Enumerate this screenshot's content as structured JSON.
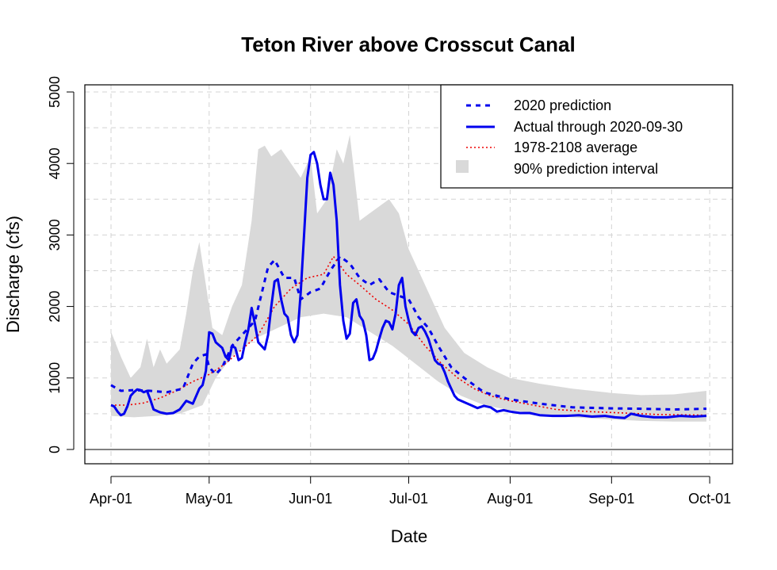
{
  "chart_data": {
    "type": "line",
    "title": "Teton River above Crosscut Canal",
    "xlabel": "Date",
    "ylabel": "Discharge (cfs)",
    "x_ticks": [
      "Apr-01",
      "May-01",
      "Jun-01",
      "Jul-01",
      "Aug-01",
      "Sep-01",
      "Oct-01"
    ],
    "y_ticks": [
      "0",
      "1000",
      "2000",
      "3000",
      "4000",
      "5000"
    ],
    "xlim": [
      "2020-03-24",
      "2020-10-08"
    ],
    "ylim": [
      -200,
      5100
    ],
    "grid": true,
    "legend_position": "top-right",
    "colors": {
      "prediction": "#0000ee",
      "actual": "#0000ee",
      "average": "#ee0000",
      "interval": "#d9d9d9"
    },
    "series": [
      {
        "name": "2020 prediction",
        "style": "dashed",
        "points": [
          [
            "2020-04-01",
            900
          ],
          [
            "2020-04-04",
            820
          ],
          [
            "2020-04-08",
            830
          ],
          [
            "2020-04-13",
            820
          ],
          [
            "2020-04-18",
            800
          ],
          [
            "2020-04-23",
            850
          ],
          [
            "2020-04-26",
            1200
          ],
          [
            "2020-04-28",
            1300
          ],
          [
            "2020-04-30",
            1330
          ],
          [
            "2020-05-01",
            1150
          ],
          [
            "2020-05-03",
            1050
          ],
          [
            "2020-05-05",
            1150
          ],
          [
            "2020-05-08",
            1450
          ],
          [
            "2020-05-12",
            1650
          ],
          [
            "2020-05-15",
            1800
          ],
          [
            "2020-05-19",
            2550
          ],
          [
            "2020-05-21",
            2650
          ],
          [
            "2020-05-24",
            2400
          ],
          [
            "2020-05-27",
            2400
          ],
          [
            "2020-05-29",
            2100
          ],
          [
            "2020-06-01",
            2200
          ],
          [
            "2020-06-04",
            2250
          ],
          [
            "2020-06-07",
            2500
          ],
          [
            "2020-06-10",
            2700
          ],
          [
            "2020-06-13",
            2600
          ],
          [
            "2020-06-16",
            2400
          ],
          [
            "2020-06-19",
            2300
          ],
          [
            "2020-06-22",
            2380
          ],
          [
            "2020-06-25",
            2200
          ],
          [
            "2020-06-28",
            2150
          ],
          [
            "2020-07-01",
            2100
          ],
          [
            "2020-07-04",
            1850
          ],
          [
            "2020-07-07",
            1700
          ],
          [
            "2020-07-10",
            1450
          ],
          [
            "2020-07-14",
            1150
          ],
          [
            "2020-07-18",
            1000
          ],
          [
            "2020-07-24",
            800
          ],
          [
            "2020-08-01",
            700
          ],
          [
            "2020-08-10",
            640
          ],
          [
            "2020-08-20",
            590
          ],
          [
            "2020-09-01",
            575
          ],
          [
            "2020-09-10",
            570
          ],
          [
            "2020-09-20",
            560
          ],
          [
            "2020-09-30",
            570
          ]
        ]
      },
      {
        "name": "Actual through 2020-09-30",
        "style": "solid",
        "points": [
          [
            "2020-04-01",
            620
          ],
          [
            "2020-04-02",
            600
          ],
          [
            "2020-04-03",
            530
          ],
          [
            "2020-04-04",
            480
          ],
          [
            "2020-04-05",
            500
          ],
          [
            "2020-04-06",
            600
          ],
          [
            "2020-04-07",
            750
          ],
          [
            "2020-04-08",
            800
          ],
          [
            "2020-04-09",
            840
          ],
          [
            "2020-04-10",
            830
          ],
          [
            "2020-04-11",
            800
          ],
          [
            "2020-04-12",
            820
          ],
          [
            "2020-04-13",
            700
          ],
          [
            "2020-04-14",
            560
          ],
          [
            "2020-04-16",
            520
          ],
          [
            "2020-04-18",
            500
          ],
          [
            "2020-04-20",
            510
          ],
          [
            "2020-04-22",
            560
          ],
          [
            "2020-04-24",
            680
          ],
          [
            "2020-04-26",
            640
          ],
          [
            "2020-04-28",
            850
          ],
          [
            "2020-04-29",
            900
          ],
          [
            "2020-04-30",
            1100
          ],
          [
            "2020-05-01",
            1640
          ],
          [
            "2020-05-02",
            1620
          ],
          [
            "2020-05-03",
            1500
          ],
          [
            "2020-05-05",
            1420
          ],
          [
            "2020-05-06",
            1300
          ],
          [
            "2020-05-07",
            1250
          ],
          [
            "2020-05-08",
            1450
          ],
          [
            "2020-05-09",
            1420
          ],
          [
            "2020-05-10",
            1250
          ],
          [
            "2020-05-11",
            1280
          ],
          [
            "2020-05-12",
            1500
          ],
          [
            "2020-05-13",
            1680
          ],
          [
            "2020-05-14",
            1980
          ],
          [
            "2020-05-15",
            1750
          ],
          [
            "2020-05-16",
            1500
          ],
          [
            "2020-05-18",
            1400
          ],
          [
            "2020-05-19",
            1600
          ],
          [
            "2020-05-20",
            2000
          ],
          [
            "2020-05-21",
            2350
          ],
          [
            "2020-05-22",
            2380
          ],
          [
            "2020-05-23",
            2100
          ],
          [
            "2020-05-24",
            1900
          ],
          [
            "2020-05-25",
            1850
          ],
          [
            "2020-05-26",
            1600
          ],
          [
            "2020-05-27",
            1500
          ],
          [
            "2020-05-28",
            1600
          ],
          [
            "2020-05-29",
            2200
          ],
          [
            "2020-05-30",
            3000
          ],
          [
            "2020-05-31",
            3800
          ],
          [
            "2020-06-01",
            4120
          ],
          [
            "2020-06-02",
            4160
          ],
          [
            "2020-06-03",
            4000
          ],
          [
            "2020-06-04",
            3700
          ],
          [
            "2020-06-05",
            3500
          ],
          [
            "2020-06-06",
            3500
          ],
          [
            "2020-06-07",
            3870
          ],
          [
            "2020-06-08",
            3700
          ],
          [
            "2020-06-09",
            3200
          ],
          [
            "2020-06-10",
            2300
          ],
          [
            "2020-06-11",
            1800
          ],
          [
            "2020-06-12",
            1550
          ],
          [
            "2020-06-13",
            1620
          ],
          [
            "2020-06-14",
            2050
          ],
          [
            "2020-06-15",
            2100
          ],
          [
            "2020-06-16",
            1870
          ],
          [
            "2020-06-17",
            1800
          ],
          [
            "2020-06-18",
            1600
          ],
          [
            "2020-06-19",
            1250
          ],
          [
            "2020-06-20",
            1270
          ],
          [
            "2020-06-21",
            1380
          ],
          [
            "2020-06-22",
            1550
          ],
          [
            "2020-06-23",
            1700
          ],
          [
            "2020-06-24",
            1800
          ],
          [
            "2020-06-25",
            1780
          ],
          [
            "2020-06-26",
            1680
          ],
          [
            "2020-06-27",
            1900
          ],
          [
            "2020-06-28",
            2300
          ],
          [
            "2020-06-29",
            2400
          ],
          [
            "2020-06-30",
            2000
          ],
          [
            "2020-07-01",
            1800
          ],
          [
            "2020-07-02",
            1650
          ],
          [
            "2020-07-03",
            1600
          ],
          [
            "2020-07-04",
            1700
          ],
          [
            "2020-07-05",
            1720
          ],
          [
            "2020-07-06",
            1650
          ],
          [
            "2020-07-07",
            1550
          ],
          [
            "2020-07-08",
            1400
          ],
          [
            "2020-07-09",
            1250
          ],
          [
            "2020-07-10",
            1200
          ],
          [
            "2020-07-11",
            1180
          ],
          [
            "2020-07-12",
            1080
          ],
          [
            "2020-07-13",
            950
          ],
          [
            "2020-07-14",
            850
          ],
          [
            "2020-07-15",
            750
          ],
          [
            "2020-07-16",
            700
          ],
          [
            "2020-07-18",
            660
          ],
          [
            "2020-07-20",
            620
          ],
          [
            "2020-07-22",
            580
          ],
          [
            "2020-07-24",
            610
          ],
          [
            "2020-07-26",
            590
          ],
          [
            "2020-07-28",
            530
          ],
          [
            "2020-07-30",
            550
          ],
          [
            "2020-08-01",
            530
          ],
          [
            "2020-08-04",
            510
          ],
          [
            "2020-08-07",
            510
          ],
          [
            "2020-08-10",
            480
          ],
          [
            "2020-08-14",
            470
          ],
          [
            "2020-08-18",
            470
          ],
          [
            "2020-08-22",
            480
          ],
          [
            "2020-08-26",
            460
          ],
          [
            "2020-08-30",
            470
          ],
          [
            "2020-09-02",
            450
          ],
          [
            "2020-09-05",
            440
          ],
          [
            "2020-09-07",
            500
          ],
          [
            "2020-09-10",
            470
          ],
          [
            "2020-09-14",
            450
          ],
          [
            "2020-09-18",
            450
          ],
          [
            "2020-09-22",
            470
          ],
          [
            "2020-09-26",
            460
          ],
          [
            "2020-09-30",
            470
          ]
        ]
      },
      {
        "name": "1978-2108 average",
        "style": "dotted",
        "points": [
          [
            "2020-04-01",
            620
          ],
          [
            "2020-04-06",
            620
          ],
          [
            "2020-04-11",
            650
          ],
          [
            "2020-04-16",
            720
          ],
          [
            "2020-04-21",
            820
          ],
          [
            "2020-04-26",
            950
          ],
          [
            "2020-05-01",
            1050
          ],
          [
            "2020-05-06",
            1200
          ],
          [
            "2020-05-11",
            1400
          ],
          [
            "2020-05-16",
            1600
          ],
          [
            "2020-05-21",
            2000
          ],
          [
            "2020-05-26",
            2250
          ],
          [
            "2020-05-31",
            2400
          ],
          [
            "2020-06-05",
            2450
          ],
          [
            "2020-06-08",
            2700
          ],
          [
            "2020-06-12",
            2450
          ],
          [
            "2020-06-16",
            2300
          ],
          [
            "2020-06-21",
            2100
          ],
          [
            "2020-06-26",
            1950
          ],
          [
            "2020-07-01",
            1750
          ],
          [
            "2020-07-06",
            1450
          ],
          [
            "2020-07-11",
            1200
          ],
          [
            "2020-07-16",
            1000
          ],
          [
            "2020-07-21",
            850
          ],
          [
            "2020-07-26",
            750
          ],
          [
            "2020-08-01",
            680
          ],
          [
            "2020-08-08",
            620
          ],
          [
            "2020-08-15",
            560
          ],
          [
            "2020-08-25",
            530
          ],
          [
            "2020-09-05",
            510
          ],
          [
            "2020-09-15",
            490
          ],
          [
            "2020-09-30",
            480
          ]
        ]
      }
    ],
    "interval": {
      "name": "90% prediction interval",
      "upper": [
        [
          "2020-04-01",
          1650
        ],
        [
          "2020-04-04",
          1300
        ],
        [
          "2020-04-07",
          1000
        ],
        [
          "2020-04-10",
          1150
        ],
        [
          "2020-04-12",
          1550
        ],
        [
          "2020-04-14",
          1150
        ],
        [
          "2020-04-16",
          1400
        ],
        [
          "2020-04-18",
          1200
        ],
        [
          "2020-04-20",
          1300
        ],
        [
          "2020-04-22",
          1400
        ],
        [
          "2020-04-24",
          1900
        ],
        [
          "2020-04-26",
          2500
        ],
        [
          "2020-04-28",
          2900
        ],
        [
          "2020-04-30",
          2300
        ],
        [
          "2020-05-02",
          1700
        ],
        [
          "2020-05-05",
          1600
        ],
        [
          "2020-05-08",
          2000
        ],
        [
          "2020-05-11",
          2300
        ],
        [
          "2020-05-14",
          3200
        ],
        [
          "2020-05-16",
          4200
        ],
        [
          "2020-05-18",
          4250
        ],
        [
          "2020-05-20",
          4100
        ],
        [
          "2020-05-23",
          4200
        ],
        [
          "2020-05-26",
          4000
        ],
        [
          "2020-05-29",
          3800
        ],
        [
          "2020-06-01",
          4100
        ],
        [
          "2020-06-03",
          3300
        ],
        [
          "2020-06-06",
          3500
        ],
        [
          "2020-06-09",
          4200
        ],
        [
          "2020-06-11",
          4000
        ],
        [
          "2020-06-13",
          4400
        ],
        [
          "2020-06-16",
          3200
        ],
        [
          "2020-06-19",
          3300
        ],
        [
          "2020-06-22",
          3400
        ],
        [
          "2020-06-25",
          3500
        ],
        [
          "2020-06-28",
          3300
        ],
        [
          "2020-07-01",
          2800
        ],
        [
          "2020-07-04",
          2500
        ],
        [
          "2020-07-08",
          2100
        ],
        [
          "2020-07-12",
          1700
        ],
        [
          "2020-07-18",
          1350
        ],
        [
          "2020-07-25",
          1150
        ],
        [
          "2020-08-01",
          1000
        ],
        [
          "2020-08-10",
          920
        ],
        [
          "2020-08-20",
          850
        ],
        [
          "2020-09-01",
          790
        ],
        [
          "2020-09-10",
          760
        ],
        [
          "2020-09-20",
          770
        ],
        [
          "2020-09-30",
          820
        ]
      ],
      "lower": [
        [
          "2020-04-01",
          470
        ],
        [
          "2020-04-08",
          450
        ],
        [
          "2020-04-15",
          470
        ],
        [
          "2020-04-22",
          500
        ],
        [
          "2020-04-29",
          620
        ],
        [
          "2020-05-03",
          1000
        ],
        [
          "2020-05-08",
          1300
        ],
        [
          "2020-05-15",
          1550
        ],
        [
          "2020-05-22",
          1700
        ],
        [
          "2020-05-29",
          1850
        ],
        [
          "2020-06-05",
          1900
        ],
        [
          "2020-06-12",
          1850
        ],
        [
          "2020-06-19",
          1650
        ],
        [
          "2020-06-26",
          1450
        ],
        [
          "2020-07-03",
          1200
        ],
        [
          "2020-07-10",
          950
        ],
        [
          "2020-07-17",
          750
        ],
        [
          "2020-07-24",
          620
        ],
        [
          "2020-08-01",
          550
        ],
        [
          "2020-08-10",
          500
        ],
        [
          "2020-08-20",
          450
        ],
        [
          "2020-09-01",
          420
        ],
        [
          "2020-09-10",
          400
        ],
        [
          "2020-09-20",
          390
        ],
        [
          "2020-09-30",
          390
        ]
      ]
    }
  }
}
